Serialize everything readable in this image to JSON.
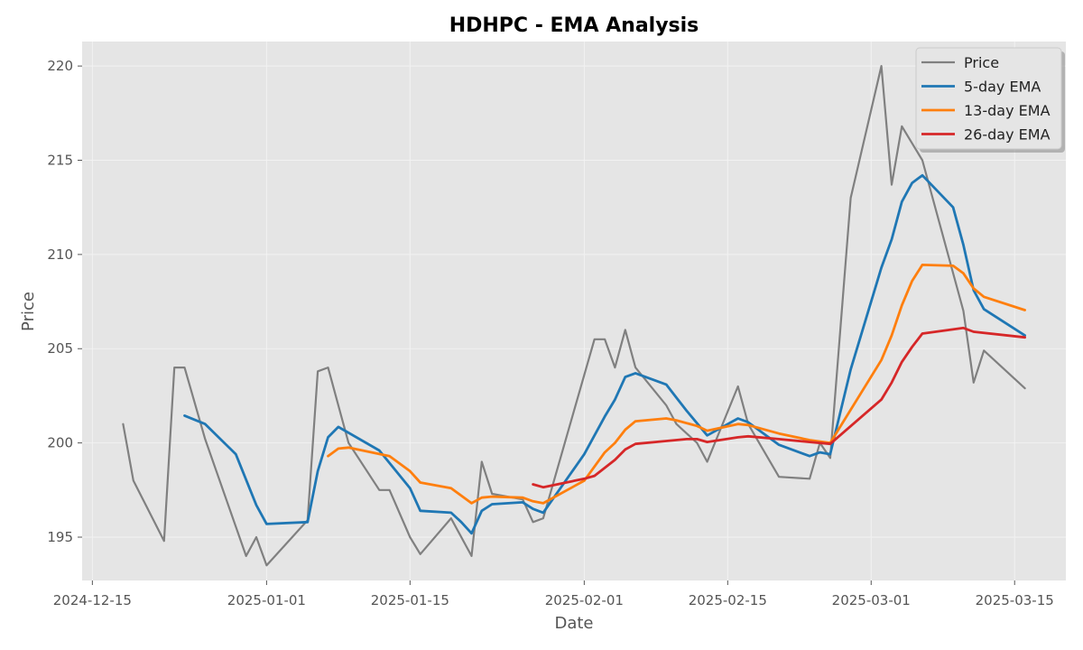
{
  "chart_data": {
    "type": "line",
    "title": "HDHPC - EMA Analysis",
    "xlabel": "Date",
    "ylabel": "Price",
    "xlim": [
      "2024-12-14",
      "2025-03-20"
    ],
    "ylim": [
      192.7,
      221.3
    ],
    "x_ticks": [
      "2024-12-15",
      "2025-01-01",
      "2025-01-15",
      "2025-02-01",
      "2025-02-15",
      "2025-03-01",
      "2025-03-15"
    ],
    "y_ticks": [
      195,
      200,
      205,
      210,
      215,
      220
    ],
    "grid": true,
    "legend_position": "top-right",
    "background": "#e5e5e5",
    "series": [
      {
        "name": "Price",
        "color": "#808080",
        "points": [
          [
            "2024-12-18",
            201.0
          ],
          [
            "2024-12-19",
            198.0
          ],
          [
            "2024-12-22",
            194.8
          ],
          [
            "2024-12-23",
            204.0
          ],
          [
            "2024-12-24",
            204.0
          ],
          [
            "2024-12-26",
            200.2
          ],
          [
            "2024-12-30",
            194.0
          ],
          [
            "2024-12-31",
            195.0
          ],
          [
            "2025-01-01",
            193.5
          ],
          [
            "2025-01-05",
            195.9
          ],
          [
            "2025-01-06",
            203.8
          ],
          [
            "2025-01-07",
            204.0
          ],
          [
            "2025-01-09",
            200.0
          ],
          [
            "2025-01-12",
            197.5
          ],
          [
            "2025-01-13",
            197.5
          ],
          [
            "2025-01-15",
            195.0
          ],
          [
            "2025-01-16",
            194.1
          ],
          [
            "2025-01-19",
            196.0
          ],
          [
            "2025-01-21",
            194.0
          ],
          [
            "2025-01-22",
            199.0
          ],
          [
            "2025-01-23",
            197.3
          ],
          [
            "2025-01-26",
            197.0
          ],
          [
            "2025-01-27",
            195.8
          ],
          [
            "2025-01-28",
            196.0
          ],
          [
            "2025-02-02",
            205.5
          ],
          [
            "2025-02-03",
            205.5
          ],
          [
            "2025-02-04",
            204.0
          ],
          [
            "2025-02-05",
            206.0
          ],
          [
            "2025-02-06",
            204.0
          ],
          [
            "2025-02-09",
            202.0
          ],
          [
            "2025-02-10",
            201.0
          ],
          [
            "2025-02-12",
            200.0
          ],
          [
            "2025-02-13",
            199.0
          ],
          [
            "2025-02-16",
            203.0
          ],
          [
            "2025-02-17",
            201.0
          ],
          [
            "2025-02-20",
            198.2
          ],
          [
            "2025-02-23",
            198.1
          ],
          [
            "2025-02-24",
            200.0
          ],
          [
            "2025-02-25",
            199.2
          ],
          [
            "2025-02-27",
            213.0
          ],
          [
            "2025-03-02",
            220.0
          ],
          [
            "2025-03-03",
            213.7
          ],
          [
            "2025-03-04",
            216.8
          ],
          [
            "2025-03-06",
            215.0
          ],
          [
            "2025-03-10",
            207.0
          ],
          [
            "2025-03-11",
            203.2
          ],
          [
            "2025-03-12",
            204.9
          ],
          [
            "2025-03-16",
            202.9
          ]
        ]
      },
      {
        "name": "5-day EMA",
        "color": "#1f77b4",
        "points": [
          [
            "2024-12-24",
            201.45
          ],
          [
            "2024-12-26",
            201.0
          ],
          [
            "2024-12-29",
            199.4
          ],
          [
            "2024-12-31",
            196.7
          ],
          [
            "2025-01-01",
            195.7
          ],
          [
            "2025-01-05",
            195.8
          ],
          [
            "2025-01-06",
            198.5
          ],
          [
            "2025-01-07",
            200.3
          ],
          [
            "2025-01-08",
            200.85
          ],
          [
            "2025-01-12",
            199.6
          ],
          [
            "2025-01-15",
            197.6
          ],
          [
            "2025-01-16",
            196.4
          ],
          [
            "2025-01-19",
            196.3
          ],
          [
            "2025-01-20",
            195.8
          ],
          [
            "2025-01-21",
            195.2
          ],
          [
            "2025-01-22",
            196.4
          ],
          [
            "2025-01-23",
            196.75
          ],
          [
            "2025-01-26",
            196.85
          ],
          [
            "2025-01-27",
            196.5
          ],
          [
            "2025-01-28",
            196.3
          ],
          [
            "2025-02-01",
            199.4
          ],
          [
            "2025-02-03",
            201.4
          ],
          [
            "2025-02-04",
            202.3
          ],
          [
            "2025-02-05",
            203.5
          ],
          [
            "2025-02-06",
            203.7
          ],
          [
            "2025-02-09",
            203.1
          ],
          [
            "2025-02-10",
            202.4
          ],
          [
            "2025-02-11",
            201.7
          ],
          [
            "2025-02-13",
            200.4
          ],
          [
            "2025-02-16",
            201.3
          ],
          [
            "2025-02-17",
            201.1
          ],
          [
            "2025-02-20",
            199.9
          ],
          [
            "2025-02-23",
            199.3
          ],
          [
            "2025-02-24",
            199.5
          ],
          [
            "2025-02-25",
            199.4
          ],
          [
            "2025-02-27",
            203.9
          ],
          [
            "2025-03-02",
            209.3
          ],
          [
            "2025-03-03",
            210.8
          ],
          [
            "2025-03-04",
            212.8
          ],
          [
            "2025-03-05",
            213.8
          ],
          [
            "2025-03-06",
            214.2
          ],
          [
            "2025-03-09",
            212.5
          ],
          [
            "2025-03-10",
            210.5
          ],
          [
            "2025-03-11",
            208.1
          ],
          [
            "2025-03-12",
            207.1
          ],
          [
            "2025-03-16",
            205.7
          ]
        ]
      },
      {
        "name": "13-day EMA",
        "color": "#ff7f0e",
        "points": [
          [
            "2025-01-07",
            199.3
          ],
          [
            "2025-01-08",
            199.7
          ],
          [
            "2025-01-09",
            199.75
          ],
          [
            "2025-01-13",
            199.3
          ],
          [
            "2025-01-15",
            198.5
          ],
          [
            "2025-01-16",
            197.9
          ],
          [
            "2025-01-19",
            197.6
          ],
          [
            "2025-01-21",
            196.8
          ],
          [
            "2025-01-22",
            197.1
          ],
          [
            "2025-01-23",
            197.15
          ],
          [
            "2025-01-26",
            197.1
          ],
          [
            "2025-01-27",
            196.9
          ],
          [
            "2025-01-28",
            196.8
          ],
          [
            "2025-02-01",
            198.0
          ],
          [
            "2025-02-03",
            199.5
          ],
          [
            "2025-02-04",
            200.0
          ],
          [
            "2025-02-05",
            200.7
          ],
          [
            "2025-02-06",
            201.15
          ],
          [
            "2025-02-09",
            201.3
          ],
          [
            "2025-02-10",
            201.2
          ],
          [
            "2025-02-12",
            200.9
          ],
          [
            "2025-02-13",
            200.65
          ],
          [
            "2025-02-16",
            201.0
          ],
          [
            "2025-02-17",
            200.95
          ],
          [
            "2025-02-20",
            200.5
          ],
          [
            "2025-02-23",
            200.15
          ],
          [
            "2025-02-25",
            200.0
          ],
          [
            "2025-03-02",
            204.4
          ],
          [
            "2025-03-03",
            205.7
          ],
          [
            "2025-03-04",
            207.3
          ],
          [
            "2025-03-05",
            208.6
          ],
          [
            "2025-03-06",
            209.45
          ],
          [
            "2025-03-09",
            209.4
          ],
          [
            "2025-03-10",
            209.0
          ],
          [
            "2025-03-11",
            208.2
          ],
          [
            "2025-03-12",
            207.75
          ],
          [
            "2025-03-16",
            207.05
          ]
        ]
      },
      {
        "name": "26-day EMA",
        "color": "#d62728",
        "points": [
          [
            "2025-01-27",
            197.8
          ],
          [
            "2025-01-28",
            197.65
          ],
          [
            "2025-02-01",
            198.1
          ],
          [
            "2025-02-02",
            198.25
          ],
          [
            "2025-02-04",
            199.1
          ],
          [
            "2025-02-05",
            199.65
          ],
          [
            "2025-02-06",
            199.95
          ],
          [
            "2025-02-09",
            200.1
          ],
          [
            "2025-02-11",
            200.2
          ],
          [
            "2025-02-12",
            200.2
          ],
          [
            "2025-02-13",
            200.05
          ],
          [
            "2025-02-16",
            200.3
          ],
          [
            "2025-02-17",
            200.35
          ],
          [
            "2025-02-20",
            200.2
          ],
          [
            "2025-02-23",
            200.05
          ],
          [
            "2025-02-25",
            199.95
          ],
          [
            "2025-03-02",
            202.3
          ],
          [
            "2025-03-03",
            203.2
          ],
          [
            "2025-03-04",
            204.3
          ],
          [
            "2025-03-05",
            205.1
          ],
          [
            "2025-03-06",
            205.8
          ],
          [
            "2025-03-10",
            206.1
          ],
          [
            "2025-03-11",
            205.9
          ],
          [
            "2025-03-16",
            205.6
          ]
        ]
      }
    ]
  }
}
